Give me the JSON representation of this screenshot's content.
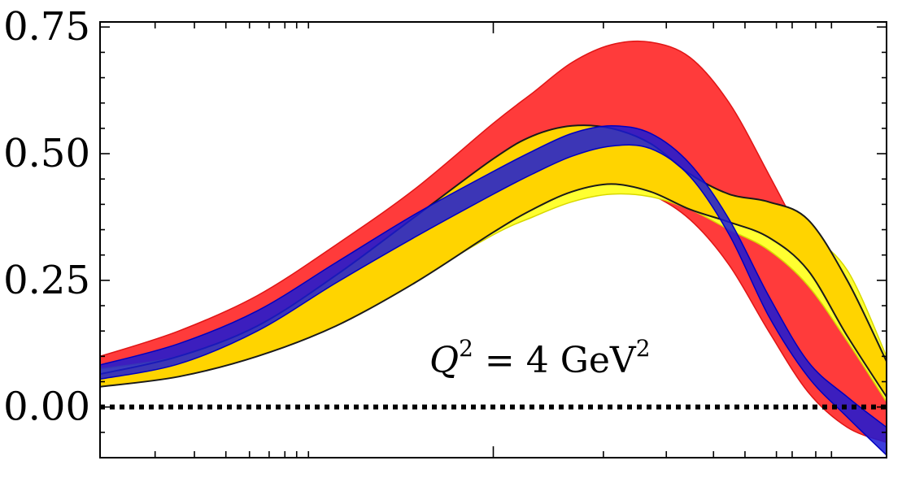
{
  "chart_data": {
    "type": "area",
    "title": "",
    "xlabel": "",
    "ylabel": "",
    "xlim": [
      0,
      1
    ],
    "ylim": [
      -0.1,
      0.76
    ],
    "y_ticks": [
      0.0,
      0.25,
      0.5,
      0.75
    ],
    "y_tick_labels": [
      "0.00",
      "0.25",
      "0.50",
      "0.75"
    ],
    "grid": false,
    "x_tick_labels_shown": false,
    "annotation": {
      "prefix": "Q",
      "sup1": "2",
      "middle": " = 4 GeV",
      "sup2": "2"
    },
    "reference_line": {
      "y": 0.0,
      "style": "dotted",
      "color": "#000000"
    },
    "bands": [
      {
        "color": "#ff2a2a",
        "edge": "#e01515",
        "x": [
          0.0,
          0.1,
          0.2,
          0.3,
          0.4,
          0.5,
          0.55,
          0.6,
          0.65,
          0.7,
          0.75,
          0.8,
          0.85,
          0.9,
          0.95,
          1.0
        ],
        "upper": [
          0.1,
          0.15,
          0.22,
          0.32,
          0.43,
          0.56,
          0.62,
          0.68,
          0.715,
          0.72,
          0.69,
          0.6,
          0.46,
          0.31,
          0.15,
          0.01
        ],
        "lower": [
          0.045,
          0.08,
          0.12,
          0.17,
          0.25,
          0.35,
          0.4,
          0.44,
          0.445,
          0.42,
          0.37,
          0.28,
          0.15,
          0.03,
          -0.04,
          -0.07
        ]
      },
      {
        "color": "#ffff30",
        "edge": "#d8d800",
        "x": [
          0.0,
          0.1,
          0.2,
          0.3,
          0.4,
          0.5,
          0.55,
          0.6,
          0.65,
          0.7,
          0.75,
          0.8,
          0.85,
          0.9,
          0.95,
          1.0
        ],
        "upper": [
          0.075,
          0.1,
          0.155,
          0.24,
          0.33,
          0.42,
          0.455,
          0.47,
          0.462,
          0.435,
          0.4,
          0.38,
          0.37,
          0.34,
          0.27,
          0.1
        ],
        "lower": [
          0.045,
          0.065,
          0.105,
          0.165,
          0.25,
          0.34,
          0.375,
          0.405,
          0.42,
          0.415,
          0.39,
          0.35,
          0.31,
          0.24,
          0.13,
          0.01
        ]
      },
      {
        "color": "#ffd400",
        "edge": "#1a1a1a",
        "x": [
          0.0,
          0.1,
          0.2,
          0.3,
          0.4,
          0.5,
          0.55,
          0.6,
          0.65,
          0.7,
          0.75,
          0.8,
          0.85,
          0.9,
          0.95,
          1.0
        ],
        "upper": [
          0.065,
          0.1,
          0.16,
          0.26,
          0.375,
          0.49,
          0.535,
          0.555,
          0.55,
          0.52,
          0.46,
          0.42,
          0.405,
          0.37,
          0.25,
          0.09
        ],
        "lower": [
          0.04,
          0.06,
          0.1,
          0.16,
          0.245,
          0.345,
          0.39,
          0.425,
          0.44,
          0.425,
          0.39,
          0.365,
          0.335,
          0.27,
          0.14,
          0.02
        ]
      },
      {
        "color": "#1a1ad6",
        "edge": "#0000c0",
        "x": [
          0.0,
          0.1,
          0.2,
          0.3,
          0.4,
          0.5,
          0.55,
          0.6,
          0.65,
          0.7,
          0.75,
          0.8,
          0.85,
          0.9,
          0.95,
          1.0
        ],
        "upper": [
          0.083,
          0.125,
          0.19,
          0.285,
          0.38,
          0.465,
          0.505,
          0.54,
          0.555,
          0.54,
          0.48,
          0.37,
          0.22,
          0.09,
          0.02,
          -0.04
        ],
        "lower": [
          0.055,
          0.085,
          0.15,
          0.245,
          0.335,
          0.42,
          0.46,
          0.495,
          0.515,
          0.51,
          0.455,
          0.34,
          0.18,
          0.06,
          -0.02,
          -0.095
        ]
      }
    ]
  }
}
